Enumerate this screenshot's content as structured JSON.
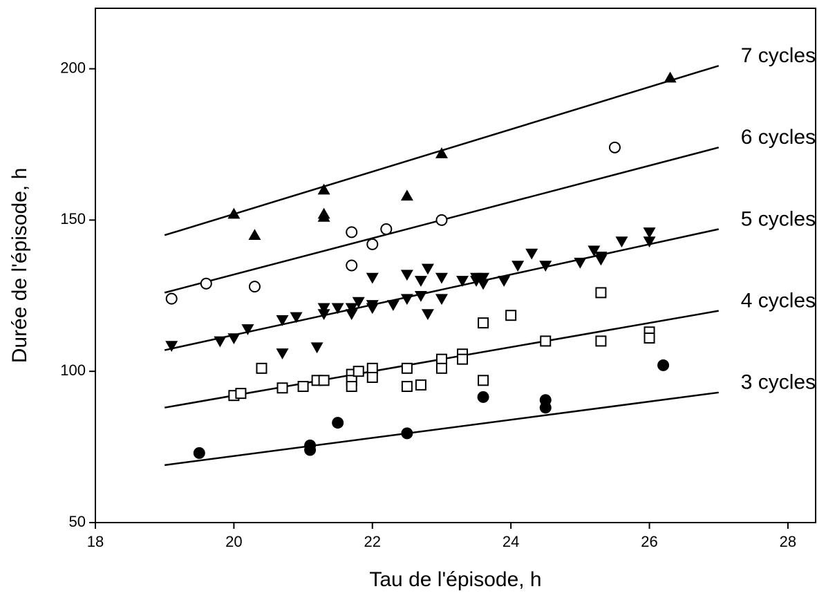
{
  "chart_data": {
    "type": "scatter",
    "x_label": "Tau de l'épisode, h",
    "y_label": "Durée de l'épisode, h",
    "xlim": [
      18,
      28.4
    ],
    "ylim": [
      50,
      220
    ],
    "xticks": [
      18,
      20,
      22,
      24,
      26,
      28
    ],
    "yticks": [
      50,
      100,
      150,
      200
    ],
    "series": [
      {
        "marker": "triangle-up",
        "color": "#000000",
        "x": [
          20.0,
          20.3,
          21.3,
          21.3,
          21.3,
          22.5,
          23.0,
          26.3
        ],
        "values": [
          152,
          145,
          160,
          152,
          151,
          158,
          172,
          197
        ]
      },
      {
        "marker": "circle-open",
        "color": "#000000",
        "x": [
          19.1,
          19.6,
          20.3,
          21.7,
          21.7,
          22.0,
          22.2,
          23.0,
          25.5
        ],
        "values": [
          124,
          129,
          128,
          146,
          135,
          142,
          147,
          150,
          174
        ]
      },
      {
        "marker": "triangle-down",
        "color": "#000000",
        "x": [
          19.1,
          19.8,
          20.0,
          20.2,
          20.7,
          20.7,
          20.9,
          21.2,
          21.3,
          21.3,
          21.5,
          21.7,
          21.7,
          21.8,
          22.0,
          22.0,
          22.0,
          22.3,
          22.5,
          22.5,
          22.7,
          22.7,
          22.8,
          22.8,
          23.0,
          23.0,
          23.3,
          23.5,
          23.5,
          23.6,
          23.6,
          23.9,
          24.1,
          24.3,
          24.5,
          25.0,
          25.2,
          25.3,
          25.3,
          25.6,
          26.0,
          26.0
        ],
        "values": [
          108.5,
          110,
          111,
          114,
          106,
          117,
          118,
          108,
          119,
          121,
          121,
          119,
          121,
          123,
          122,
          121,
          131,
          122,
          124,
          132,
          125,
          130,
          119,
          134,
          124,
          131,
          130,
          131,
          130,
          131,
          129,
          130,
          135,
          139,
          135,
          136,
          140,
          138,
          137,
          143,
          146,
          143
        ]
      },
      {
        "marker": "square-open",
        "color": "#000000",
        "x": [
          20.0,
          20.1,
          20.4,
          20.7,
          21.0,
          21.2,
          21.3,
          21.7,
          21.7,
          21.7,
          21.8,
          22.0,
          22.0,
          22.5,
          22.5,
          22.7,
          23.0,
          23.0,
          23.3,
          23.3,
          23.6,
          23.6,
          24.0,
          24.5,
          25.3,
          25.3,
          26.0,
          26.0
        ],
        "values": [
          92,
          92.7,
          101,
          94.5,
          95,
          97,
          97,
          99,
          97,
          95,
          100,
          101,
          98,
          101,
          95,
          95.5,
          104,
          101,
          105.7,
          104,
          97,
          116,
          118.5,
          110,
          126,
          110,
          113,
          111
        ]
      },
      {
        "marker": "circle-filled",
        "color": "#000000",
        "x": [
          19.5,
          21.1,
          21.1,
          21.5,
          22.5,
          23.6,
          24.5,
          24.5,
          26.2
        ],
        "values": [
          73,
          75.5,
          74,
          83,
          79.5,
          91.5,
          90.5,
          88,
          102
        ]
      }
    ],
    "fits": [
      {
        "name": "7 cycles",
        "x": [
          19,
          27
        ],
        "values": [
          145,
          201
        ]
      },
      {
        "name": "6 cycles",
        "x": [
          19,
          27
        ],
        "values": [
          126,
          174
        ]
      },
      {
        "name": "5 cycles",
        "x": [
          19,
          27
        ],
        "values": [
          107,
          147
        ]
      },
      {
        "name": "4 cycles",
        "x": [
          19,
          27
        ],
        "values": [
          88,
          120
        ]
      },
      {
        "name": "3 cycles",
        "x": [
          19,
          27
        ],
        "values": [
          69,
          93
        ]
      }
    ]
  }
}
